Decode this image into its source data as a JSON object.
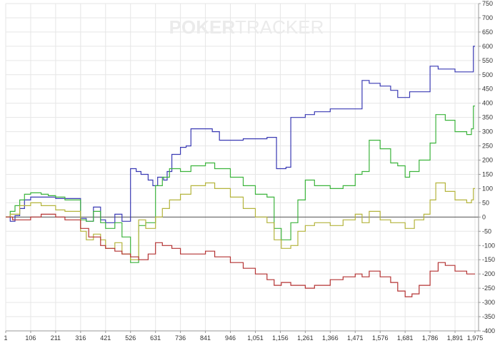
{
  "watermark": {
    "word1": "POKER",
    "word2": "TRACKER"
  },
  "colors": {
    "background": "#ffffff",
    "grid": "#e6e6e6",
    "axis": "#999999",
    "zero_line": "#555555",
    "tick_text": "#333333",
    "watermark": "#ebebeb"
  },
  "chart_data": {
    "type": "line",
    "xlabel": "",
    "ylabel": "",
    "xlim": [
      1,
      1990
    ],
    "ylim": [
      -400,
      750
    ],
    "x_ticks": [
      1,
      106,
      211,
      316,
      421,
      526,
      631,
      736,
      841,
      946,
      1051,
      1156,
      1261,
      1366,
      1471,
      1576,
      1681,
      1786,
      1891,
      1975
    ],
    "x_tick_labels": [
      "1",
      "106",
      "211",
      "316",
      "421",
      "526",
      "631",
      "736",
      "841",
      "946",
      "1,051",
      "1,156",
      "1,261",
      "1,366",
      "1,471",
      "1,576",
      "1,681",
      "1,786",
      "1,891",
      "1,975"
    ],
    "y_ticks": [
      -400,
      -350,
      -300,
      -250,
      -200,
      -150,
      -100,
      -50,
      0,
      50,
      100,
      150,
      200,
      250,
      300,
      350,
      400,
      450,
      500,
      550,
      600,
      650,
      700,
      750
    ],
    "grid": true,
    "series": [
      {
        "color": "#3a3ab4",
        "points": [
          [
            1,
            0
          ],
          [
            20,
            -15
          ],
          [
            40,
            5
          ],
          [
            60,
            30
          ],
          [
            80,
            60
          ],
          [
            106,
            70
          ],
          [
            140,
            70
          ],
          [
            170,
            70
          ],
          [
            211,
            65
          ],
          [
            240,
            65
          ],
          [
            316,
            -5
          ],
          [
            340,
            -15
          ],
          [
            370,
            35
          ],
          [
            400,
            -10
          ],
          [
            421,
            -20
          ],
          [
            460,
            10
          ],
          [
            490,
            -15
          ],
          [
            526,
            170
          ],
          [
            550,
            160
          ],
          [
            570,
            150
          ],
          [
            600,
            130
          ],
          [
            620,
            110
          ],
          [
            640,
            140
          ],
          [
            665,
            130
          ],
          [
            680,
            160
          ],
          [
            700,
            220
          ],
          [
            736,
            245
          ],
          [
            760,
            250
          ],
          [
            780,
            310
          ],
          [
            841,
            310
          ],
          [
            870,
            300
          ],
          [
            900,
            270
          ],
          [
            946,
            270
          ],
          [
            1000,
            275
          ],
          [
            1051,
            275
          ],
          [
            1100,
            280
          ],
          [
            1130,
            280
          ],
          [
            1140,
            170
          ],
          [
            1180,
            175
          ],
          [
            1200,
            350
          ],
          [
            1230,
            350
          ],
          [
            1261,
            360
          ],
          [
            1300,
            370
          ],
          [
            1366,
            380
          ],
          [
            1420,
            380
          ],
          [
            1471,
            380
          ],
          [
            1500,
            480
          ],
          [
            1530,
            470
          ],
          [
            1576,
            460
          ],
          [
            1620,
            445
          ],
          [
            1650,
            420
          ],
          [
            1681,
            420
          ],
          [
            1700,
            440
          ],
          [
            1760,
            440
          ],
          [
            1786,
            530
          ],
          [
            1820,
            520
          ],
          [
            1891,
            510
          ],
          [
            1960,
            510
          ],
          [
            1968,
            600
          ],
          [
            1975,
            600
          ]
        ]
      },
      {
        "color": "#3cb43c",
        "points": [
          [
            1,
            0
          ],
          [
            20,
            20
          ],
          [
            40,
            40
          ],
          [
            60,
            60
          ],
          [
            80,
            80
          ],
          [
            106,
            85
          ],
          [
            150,
            80
          ],
          [
            180,
            75
          ],
          [
            211,
            70
          ],
          [
            250,
            60
          ],
          [
            316,
            -10
          ],
          [
            340,
            -15
          ],
          [
            370,
            20
          ],
          [
            400,
            -20
          ],
          [
            421,
            -40
          ],
          [
            460,
            -20
          ],
          [
            490,
            -70
          ],
          [
            526,
            -160
          ],
          [
            560,
            -30
          ],
          [
            590,
            -20
          ],
          [
            631,
            110
          ],
          [
            660,
            140
          ],
          [
            690,
            170
          ],
          [
            736,
            160
          ],
          [
            780,
            180
          ],
          [
            841,
            190
          ],
          [
            880,
            170
          ],
          [
            946,
            140
          ],
          [
            1000,
            110
          ],
          [
            1051,
            80
          ],
          [
            1100,
            70
          ],
          [
            1130,
            -40
          ],
          [
            1160,
            -80
          ],
          [
            1200,
            -20
          ],
          [
            1230,
            60
          ],
          [
            1261,
            130
          ],
          [
            1300,
            110
          ],
          [
            1366,
            100
          ],
          [
            1420,
            110
          ],
          [
            1471,
            150
          ],
          [
            1500,
            160
          ],
          [
            1530,
            270
          ],
          [
            1576,
            240
          ],
          [
            1620,
            190
          ],
          [
            1650,
            180
          ],
          [
            1681,
            140
          ],
          [
            1700,
            160
          ],
          [
            1740,
            200
          ],
          [
            1786,
            260
          ],
          [
            1810,
            360
          ],
          [
            1850,
            340
          ],
          [
            1891,
            300
          ],
          [
            1940,
            290
          ],
          [
            1960,
            310
          ],
          [
            1968,
            390
          ],
          [
            1975,
            390
          ]
        ]
      },
      {
        "color": "#b4b43c",
        "points": [
          [
            1,
            0
          ],
          [
            20,
            10
          ],
          [
            60,
            40
          ],
          [
            106,
            50
          ],
          [
            150,
            40
          ],
          [
            211,
            25
          ],
          [
            250,
            20
          ],
          [
            316,
            -50
          ],
          [
            340,
            -80
          ],
          [
            370,
            -60
          ],
          [
            400,
            -80
          ],
          [
            421,
            -110
          ],
          [
            460,
            -90
          ],
          [
            490,
            -130
          ],
          [
            526,
            -150
          ],
          [
            560,
            -10
          ],
          [
            590,
            -40
          ],
          [
            631,
            0
          ],
          [
            660,
            30
          ],
          [
            690,
            60
          ],
          [
            736,
            80
          ],
          [
            780,
            110
          ],
          [
            841,
            120
          ],
          [
            880,
            100
          ],
          [
            946,
            70
          ],
          [
            1000,
            30
          ],
          [
            1051,
            0
          ],
          [
            1100,
            -20
          ],
          [
            1130,
            -80
          ],
          [
            1160,
            -110
          ],
          [
            1200,
            -100
          ],
          [
            1230,
            -50
          ],
          [
            1261,
            -30
          ],
          [
            1300,
            -20
          ],
          [
            1366,
            -30
          ],
          [
            1420,
            -10
          ],
          [
            1471,
            10
          ],
          [
            1500,
            -20
          ],
          [
            1530,
            20
          ],
          [
            1576,
            -10
          ],
          [
            1620,
            -20
          ],
          [
            1681,
            -40
          ],
          [
            1720,
            -10
          ],
          [
            1760,
            10
          ],
          [
            1786,
            60
          ],
          [
            1810,
            120
          ],
          [
            1850,
            90
          ],
          [
            1891,
            60
          ],
          [
            1940,
            50
          ],
          [
            1960,
            60
          ],
          [
            1968,
            100
          ],
          [
            1975,
            100
          ]
        ]
      },
      {
        "color": "#b43232",
        "points": [
          [
            1,
            0
          ],
          [
            30,
            -10
          ],
          [
            60,
            -10
          ],
          [
            106,
            0
          ],
          [
            150,
            10
          ],
          [
            211,
            0
          ],
          [
            250,
            -10
          ],
          [
            316,
            -40
          ],
          [
            350,
            -70
          ],
          [
            400,
            -100
          ],
          [
            421,
            -110
          ],
          [
            460,
            -120
          ],
          [
            490,
            -130
          ],
          [
            526,
            -140
          ],
          [
            560,
            -150
          ],
          [
            600,
            -130
          ],
          [
            631,
            -90
          ],
          [
            660,
            -100
          ],
          [
            700,
            -110
          ],
          [
            736,
            -130
          ],
          [
            780,
            -130
          ],
          [
            841,
            -120
          ],
          [
            880,
            -140
          ],
          [
            946,
            -160
          ],
          [
            1000,
            -180
          ],
          [
            1051,
            -200
          ],
          [
            1100,
            -220
          ],
          [
            1130,
            -240
          ],
          [
            1160,
            -230
          ],
          [
            1200,
            -240
          ],
          [
            1261,
            -250
          ],
          [
            1300,
            -240
          ],
          [
            1366,
            -220
          ],
          [
            1420,
            -210
          ],
          [
            1471,
            -200
          ],
          [
            1500,
            -210
          ],
          [
            1530,
            -190
          ],
          [
            1576,
            -210
          ],
          [
            1620,
            -230
          ],
          [
            1650,
            -260
          ],
          [
            1681,
            -280
          ],
          [
            1710,
            -270
          ],
          [
            1740,
            -240
          ],
          [
            1786,
            -190
          ],
          [
            1820,
            -160
          ],
          [
            1850,
            -170
          ],
          [
            1891,
            -190
          ],
          [
            1940,
            -200
          ],
          [
            1975,
            -200
          ]
        ]
      }
    ]
  }
}
